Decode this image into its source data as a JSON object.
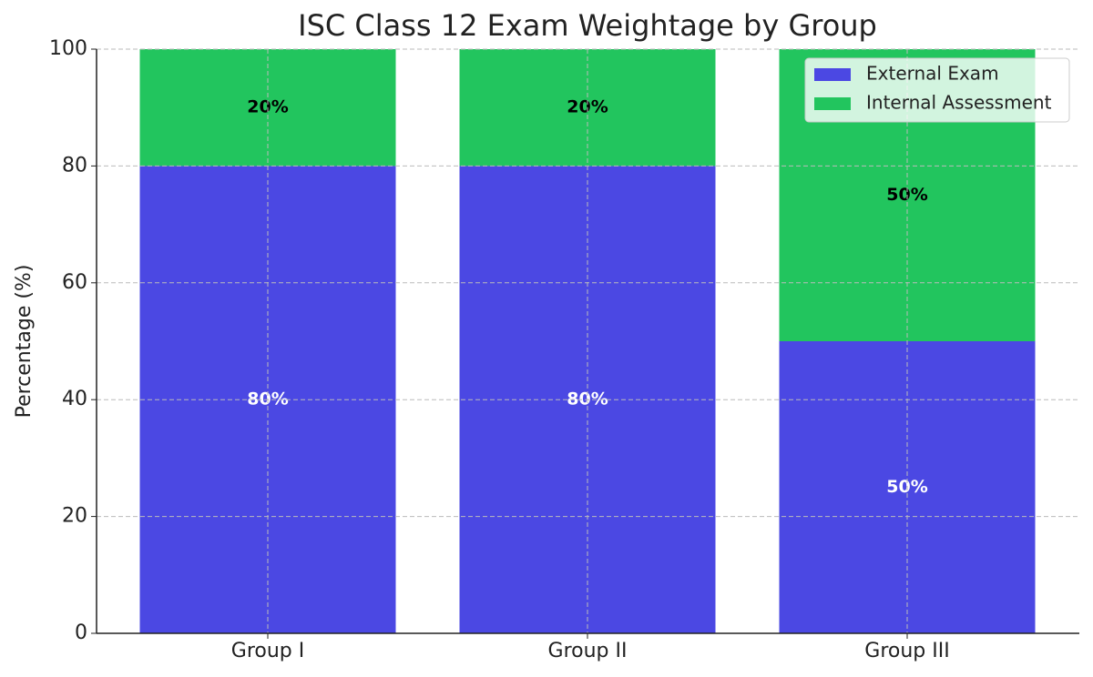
{
  "chart_data": {
    "type": "bar",
    "stacked": true,
    "title": "ISC Class 12 Exam Weightage by Group",
    "ylabel": "Percentage (%)",
    "categories": [
      "Group I",
      "Group II",
      "Group III"
    ],
    "series": [
      {
        "name": "External Exam",
        "color": "#4b48e3",
        "values": [
          80,
          80,
          50
        ],
        "value_labels": [
          "80%",
          "80%",
          "50%"
        ],
        "label_color": "#ffffff"
      },
      {
        "name": "Internal Assessment",
        "color": "#22c55e",
        "values": [
          20,
          20,
          50
        ],
        "value_labels": [
          "20%",
          "20%",
          "50%"
        ],
        "label_color": "#000000"
      }
    ],
    "ylim": [
      0,
      100
    ],
    "yticks": [
      0,
      20,
      40,
      60,
      80,
      100
    ],
    "grid": true,
    "legend": "upper right"
  }
}
